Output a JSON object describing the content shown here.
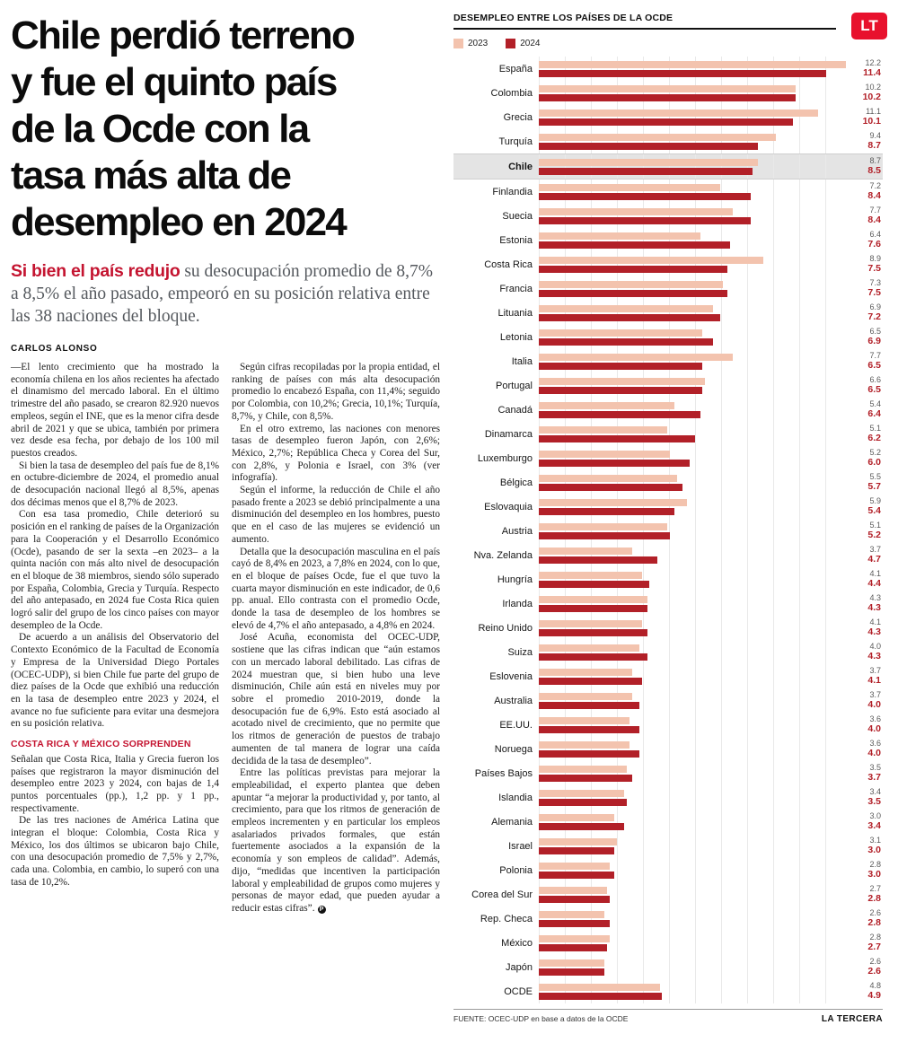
{
  "page": {
    "brand": "LT",
    "credit": "LA TERCERA"
  },
  "article": {
    "headline_lines": [
      "Chile perdió terreno",
      "y fue el quinto país",
      "de la Ocde con la",
      "tasa más alta de",
      "desempleo en 2024"
    ],
    "lede_highlight": "Si bien el país redujo",
    "lede_rest": " su desocupación promedio de 8,7% a 8,5% el año pasado, empeoró en su posición relativa entre las 38 naciones del bloque.",
    "byline": "CARLOS ALONSO",
    "col1_paragraphs": [
      "—El lento crecimiento que ha mostrado la economía chilena en los años recientes ha afectado el dinamismo del mercado laboral. En el último trimestre del año pasado, se crearon 82.920 nuevos empleos, según el INE, que es la menor cifra desde abril de 2021 y que se ubica, también por primera vez desde esa fecha, por debajo de los 100 mil puestos creados.",
      "Si bien la tasa de desempleo del país fue de 8,1% en octubre-diciembre de 2024, el promedio anual de desocupación nacional llegó al 8,5%, apenas dos décimas menos que el 8,7% de 2023.",
      "Con esa tasa promedio, Chile deterioró su posición en el ranking de países de la Organización para la Cooperación y el Desarrollo Económico (Ocde), pasando de ser la sexta –en 2023– a la quinta nación con más alto nivel de desocupación en el bloque de 38 miembros, siendo sólo superado por España, Colombia, Grecia y Turquía. Respecto del año antepasado, en 2024 fue Costa Rica quien logró salir del grupo de los cinco países con mayor desempleo de la Ocde.",
      "De acuerdo a un análisis del Observatorio del Contexto Económico de la Facultad de Economía y Empresa de la Universidad Diego Portales (OCEC-UDP), si bien Chile fue parte del grupo de diez países de la Ocde que exhibió una reducción en la tasa de desempleo entre 2023 y 2024, el avance no fue suficiente para evitar una desmejora en su posición relativa."
    ],
    "subhead": "COSTA RICA Y MÉXICO SORPRENDEN",
    "col1_paragraphs_after": [
      "Señalan que Costa Rica, Italia y Grecia fueron los países que registraron la mayor disminución del desempleo entre 2023 y 2024, con bajas de 1,4 puntos porcentuales (pp.), 1,2 pp. y 1 pp., respectivamente.",
      "De las tres naciones de América Latina que integran el bloque: Colombia, Costa Rica y México, los dos últimos se ubicaron bajo Chile, con una desocupación promedio de 7,5% y 2,7%, cada una. Colombia, en cambio, lo superó con una tasa de 10,2%."
    ],
    "col2_paragraphs": [
      "Según cifras recopiladas por la propia entidad, el ranking de países con más alta desocupación promedio lo encabezó España, con 11,4%; seguido por Colombia, con 10,2%; Grecia, 10,1%; Turquía, 8,7%, y Chile, con 8,5%.",
      "En el otro extremo, las naciones con menores tasas de desempleo fueron Japón, con 2,6%; México, 2,7%; República Checa y Corea del Sur, con 2,8%, y Polonia e Israel, con 3% (ver infografía).",
      "Según el informe, la reducción de Chile el año pasado frente a 2023 se debió principalmente a una disminución del desempleo en los hombres, puesto que en el caso de las mujeres se evidenció un aumento.",
      "Detalla que la desocupación masculina en el país cayó de 8,4% en 2023, a 7,8% en 2024, con lo que, en el bloque de países Ocde, fue el que tuvo la cuarta mayor disminución en este indicador, de 0,6 pp. anual. Ello contrasta con el promedio Ocde, donde la tasa de desempleo de los hombres se elevó de 4,7% el año antepasado, a 4,8% en 2024.",
      "José Acuña, economista del OCEC-UDP, sostiene que las cifras indican que “aún estamos con un mercado laboral debilitado. Las cifras de 2024 muestran que, si bien hubo una leve disminución, Chile aún está en niveles muy por sobre el promedio 2010-2019, donde la desocupación fue de 6,9%. Esto está asociado al acotado nivel de crecimiento, que no permite que los ritmos de generación de puestos de trabajo aumenten de tal manera de lograr una caída decidida de la tasa de desempleo”.",
      "Entre las políticas previstas para mejorar la empleabilidad, el experto plantea que deben apuntar “a mejorar la productividad y, por tanto, al crecimiento, para que los ritmos de generación de empleos incrementen y en particular los empleos asalariados privados formales, que están fuertemente asociados a la expansión de la economía y son empleos de calidad”. Además, dijo, “medidas que incentiven la participación laboral y empleabilidad de grupos como mujeres y personas de mayor edad, que pueden ayudar a reducir estas cifras”."
    ],
    "end_mark": "P"
  },
  "chart": {
    "title": "DESEMPLEO ENTRE LOS PAÍSES DE LA OCDE",
    "legend": [
      {
        "label": "2023",
        "color": "#f3c3ae"
      },
      {
        "label": "2024",
        "color": "#b22028"
      }
    ],
    "source": "FUENTE:  OCEC-UDP en base a datos de la OCDE"
  },
  "chart_data": {
    "type": "bar",
    "orientation": "horizontal",
    "title": "DESEMPLEO ENTRE LOS PAÍSES DE LA OCDE",
    "xlabel": "",
    "ylabel": "",
    "xmax": 12.3,
    "grid": true,
    "legend_position": "top-left",
    "highlight_category": "Chile",
    "categories": [
      "España",
      "Colombia",
      "Grecia",
      "Turquía",
      "Chile",
      "Finlandia",
      "Suecia",
      "Estonia",
      "Costa Rica",
      "Francia",
      "Lituania",
      "Letonia",
      "Italia",
      "Portugal",
      "Canadá",
      "Dinamarca",
      "Luxemburgo",
      "Bélgica",
      "Eslovaquia",
      "Austria",
      "Nva. Zelanda",
      "Hungría",
      "Irlanda",
      "Reino Unido",
      "Suiza",
      "Eslovenia",
      "Australia",
      "EE.UU.",
      "Noruega",
      "Países Bajos",
      "Islandia",
      "Alemania",
      "Israel",
      "Polonia",
      "Corea del Sur",
      "Rep. Checa",
      "México",
      "Japón",
      "OCDE"
    ],
    "series": [
      {
        "name": "2023",
        "color": "#f3c3ae",
        "values": [
          12.2,
          10.2,
          11.1,
          9.4,
          8.7,
          7.2,
          7.7,
          6.4,
          8.9,
          7.3,
          6.9,
          6.5,
          7.7,
          6.6,
          5.4,
          5.1,
          5.2,
          5.5,
          5.9,
          5.1,
          3.7,
          4.1,
          4.3,
          4.1,
          4.0,
          3.7,
          3.7,
          3.6,
          3.6,
          3.5,
          3.4,
          3.0,
          3.1,
          2.8,
          2.7,
          2.6,
          2.8,
          2.6,
          4.8
        ]
      },
      {
        "name": "2024",
        "color": "#b22028",
        "values": [
          11.4,
          10.2,
          10.1,
          8.7,
          8.5,
          8.4,
          8.4,
          7.6,
          7.5,
          7.5,
          7.2,
          6.9,
          6.5,
          6.5,
          6.4,
          6.2,
          6.0,
          5.7,
          5.4,
          5.2,
          4.7,
          4.4,
          4.3,
          4.3,
          4.3,
          4.1,
          4.0,
          4.0,
          4.0,
          3.7,
          3.5,
          3.4,
          3.0,
          3.0,
          2.8,
          2.8,
          2.7,
          2.6,
          4.9
        ]
      }
    ]
  }
}
